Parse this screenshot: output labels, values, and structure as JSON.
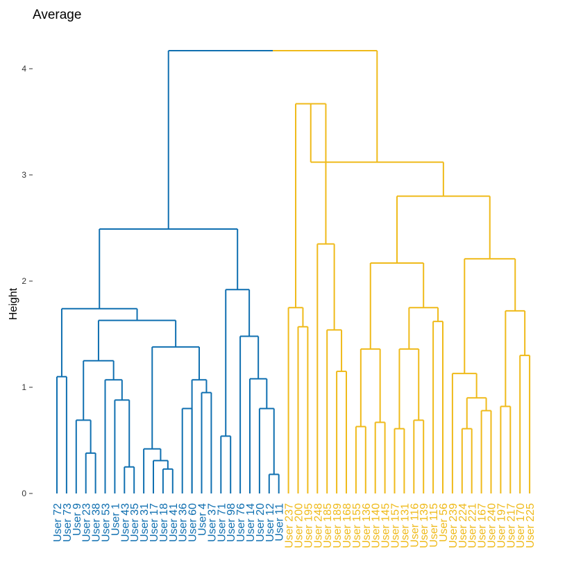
{
  "chart_data": {
    "type": "dendrogram",
    "title": "Average",
    "ylabel": "Height",
    "ylim": [
      0,
      4.4
    ],
    "yticks": [
      0,
      1,
      2,
      3,
      4
    ],
    "grid": false,
    "colors": {
      "cluster1": "#0F6FB0",
      "cluster2": "#EFBA1A"
    },
    "clusters": [
      {
        "color_key": "cluster1",
        "leaves": [
          "User 72",
          "User 73",
          "User 9",
          "User 23",
          "User 38",
          "User 53",
          "User 1",
          "User 43",
          "User 35",
          "User 31",
          "User 17",
          "User 18",
          "User 41",
          "User 36",
          "User 60",
          "User 4",
          "User 37",
          "User 71",
          "User 98",
          "User 76",
          "User 14",
          "User 20",
          "User 12",
          "User 11"
        ]
      },
      {
        "color_key": "cluster2",
        "leaves": [
          "User 237",
          "User 200",
          "User 195",
          "User 248",
          "User 185",
          "User 189",
          "User 168",
          "User 155",
          "User 136",
          "User 140",
          "User 145",
          "User 157",
          "User 131",
          "User 116",
          "User 139",
          "User 115",
          "User 56",
          "User 239",
          "User 224",
          "User 221",
          "User 167",
          "User 240",
          "User 197",
          "User 217",
          "User 170",
          "User 225"
        ]
      }
    ],
    "merges": [
      {
        "left": "User 72",
        "right": "User 73",
        "height": 1.1
      },
      {
        "left": "User 23",
        "right": "User 38",
        "height": 0.38
      },
      {
        "left": "User 9",
        "right": 2,
        "height": 0.69
      },
      {
        "left": "User 43",
        "right": "User 35",
        "height": 0.25
      },
      {
        "left": "User 1",
        "right": 4,
        "height": 0.88
      },
      {
        "left": "User 53",
        "right": 5,
        "height": 1.07
      },
      {
        "left": 3,
        "right": 6,
        "height": 1.25
      },
      {
        "left": "User 41",
        "right": "User 18",
        "height": 0.23
      },
      {
        "left": "User 17",
        "right": 8,
        "height": 0.31
      },
      {
        "left": "User 31",
        "right": 9,
        "height": 0.42
      },
      {
        "left": "User 4",
        "right": "User 37",
        "height": 0.95
      },
      {
        "left": "User 60",
        "right": 11,
        "height": 1.07
      },
      {
        "left": "User 36",
        "right": "User 60",
        "height": 0.8
      },
      {
        "left": 10,
        "right": 12,
        "height": 1.38
      },
      {
        "left": 7,
        "right": 14,
        "height": 1.63
      },
      {
        "left": 1,
        "right": 15,
        "height": 1.74
      },
      {
        "left": "User 71",
        "right": "User 98",
        "height": 0.54
      },
      {
        "left": "User 12",
        "right": "User 11",
        "height": 0.18
      },
      {
        "left": "User 20",
        "right": 18,
        "height": 0.8
      },
      {
        "left": "User 14",
        "right": 19,
        "height": 1.08
      },
      {
        "left": "User 76",
        "right": 20,
        "height": 1.48
      },
      {
        "left": 17,
        "right": 21,
        "height": 1.92
      },
      {
        "left": 16,
        "right": 22,
        "height": 2.49
      },
      {
        "left": "User 200",
        "right": "User 195",
        "height": 1.57
      },
      {
        "left": "User 237",
        "right": 24,
        "height": 1.75
      },
      {
        "left": "User 189",
        "right": "User 168",
        "height": 1.15
      },
      {
        "left": "User 185",
        "right": 26,
        "height": 1.54
      },
      {
        "left": "User 248",
        "right": 27,
        "height": 2.35
      },
      {
        "left": 25,
        "right": 28,
        "height": 3.67
      },
      {
        "left": "User 155",
        "right": "User 136",
        "height": 0.63
      },
      {
        "left": "User 140",
        "right": "User 145",
        "height": 0.67
      },
      {
        "left": 30,
        "right": 31,
        "height": 1.36
      },
      {
        "left": "User 157",
        "right": "User 131",
        "height": 0.61
      },
      {
        "left": "User 116",
        "right": "User 139",
        "height": 0.69
      },
      {
        "left": 33,
        "right": 34,
        "height": 1.36
      },
      {
        "left": "User 115",
        "right": "User 56",
        "height": 1.62
      },
      {
        "left": 35,
        "right": 36,
        "height": 1.75
      },
      {
        "left": 32,
        "right": 37,
        "height": 2.17
      },
      {
        "left": "User 224",
        "right": "User 221",
        "height": 0.61
      },
      {
        "left": "User 167",
        "right": "User 240",
        "height": 0.78
      },
      {
        "left": 39,
        "right": 40,
        "height": 0.9
      },
      {
        "left": "User 239",
        "right": 41,
        "height": 1.13
      },
      {
        "left": "User 197",
        "right": "User 217",
        "height": 0.82
      },
      {
        "left": "User 170",
        "right": "User 225",
        "height": 1.3
      },
      {
        "left": 43,
        "right": 44,
        "height": 1.72
      },
      {
        "left": 42,
        "right": 45,
        "height": 2.21
      },
      {
        "left": 38,
        "right": 46,
        "height": 2.8
      },
      {
        "left": 29,
        "right": 47,
        "height": 3.12
      },
      {
        "left": 23,
        "right": 48,
        "height": 4.17
      }
    ]
  }
}
